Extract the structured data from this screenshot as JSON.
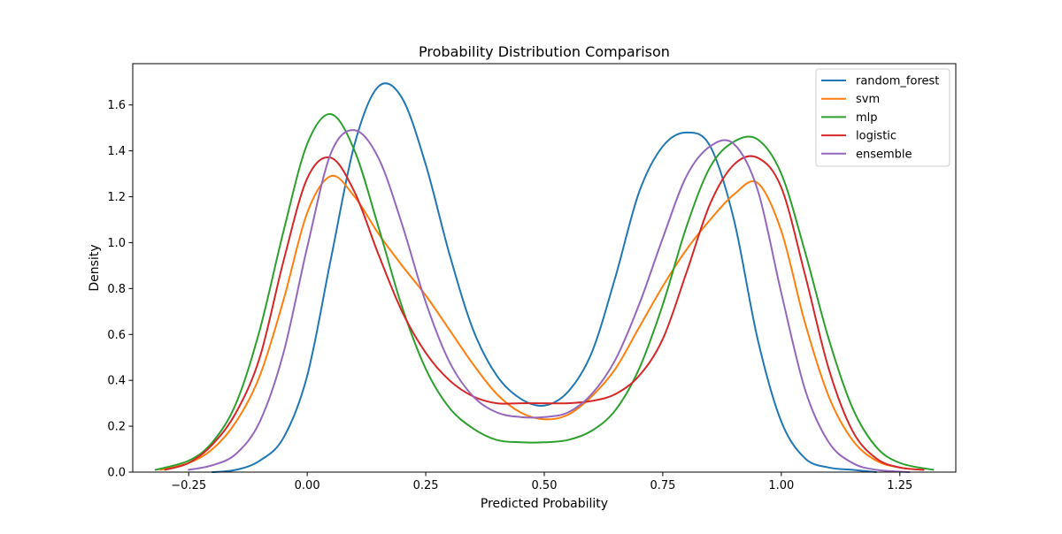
{
  "chart_data": {
    "type": "line",
    "title": "Probability Distribution Comparison",
    "xlabel": "Predicted Probability",
    "ylabel": "Density",
    "xlim": [
      -0.368,
      1.368
    ],
    "ylim": [
      0,
      1.78
    ],
    "xticks": [
      -0.25,
      0.0,
      0.25,
      0.5,
      0.75,
      1.0,
      1.25
    ],
    "xtick_labels": [
      "−0.25",
      "0.00",
      "0.25",
      "0.50",
      "0.75",
      "1.00",
      "1.25"
    ],
    "yticks": [
      0.0,
      0.2,
      0.4,
      0.6,
      0.8,
      1.0,
      1.2,
      1.4,
      1.6
    ],
    "ytick_labels": [
      "0.0",
      "0.2",
      "0.4",
      "0.6",
      "0.8",
      "1.0",
      "1.2",
      "1.4",
      "1.6"
    ],
    "grid": false,
    "legend_position": "top-right",
    "series": [
      {
        "name": "random_forest",
        "color": "#1f77b4",
        "x": [
          -0.2,
          -0.15,
          -0.1,
          -0.05,
          0.0,
          0.05,
          0.1,
          0.15,
          0.2,
          0.25,
          0.3,
          0.35,
          0.4,
          0.45,
          0.5,
          0.55,
          0.6,
          0.65,
          0.7,
          0.75,
          0.8,
          0.85,
          0.9,
          0.95,
          1.0,
          1.05,
          1.1,
          1.15,
          1.2
        ],
        "y": [
          0.0,
          0.01,
          0.05,
          0.15,
          0.42,
          0.93,
          1.43,
          1.68,
          1.63,
          1.34,
          0.95,
          0.62,
          0.42,
          0.32,
          0.29,
          0.35,
          0.52,
          0.85,
          1.22,
          1.42,
          1.48,
          1.42,
          1.1,
          0.58,
          0.22,
          0.06,
          0.02,
          0.01,
          0.0
        ]
      },
      {
        "name": "svm",
        "color": "#ff7f0e",
        "x": [
          -0.31,
          -0.25,
          -0.2,
          -0.15,
          -0.1,
          -0.05,
          0.0,
          0.05,
          0.1,
          0.15,
          0.2,
          0.25,
          0.3,
          0.35,
          0.4,
          0.45,
          0.5,
          0.55,
          0.6,
          0.65,
          0.7,
          0.75,
          0.8,
          0.85,
          0.9,
          0.95,
          1.0,
          1.05,
          1.1,
          1.15,
          1.2,
          1.25,
          1.3
        ],
        "y": [
          0.01,
          0.04,
          0.1,
          0.22,
          0.42,
          0.75,
          1.13,
          1.29,
          1.2,
          1.04,
          0.9,
          0.77,
          0.62,
          0.47,
          0.34,
          0.26,
          0.23,
          0.25,
          0.33,
          0.45,
          0.63,
          0.81,
          0.97,
          1.1,
          1.21,
          1.26,
          1.05,
          0.65,
          0.33,
          0.14,
          0.05,
          0.02,
          0.01
        ]
      },
      {
        "name": "mlp",
        "color": "#2ca02c",
        "x": [
          -0.32,
          -0.25,
          -0.2,
          -0.15,
          -0.1,
          -0.05,
          0.0,
          0.05,
          0.1,
          0.15,
          0.2,
          0.25,
          0.3,
          0.35,
          0.4,
          0.45,
          0.5,
          0.55,
          0.6,
          0.65,
          0.7,
          0.75,
          0.8,
          0.85,
          0.9,
          0.95,
          1.0,
          1.05,
          1.1,
          1.15,
          1.2,
          1.25,
          1.32
        ],
        "y": [
          0.01,
          0.05,
          0.13,
          0.3,
          0.62,
          1.05,
          1.43,
          1.56,
          1.4,
          1.07,
          0.72,
          0.45,
          0.28,
          0.19,
          0.14,
          0.13,
          0.13,
          0.14,
          0.18,
          0.27,
          0.45,
          0.73,
          1.07,
          1.33,
          1.44,
          1.45,
          1.3,
          0.96,
          0.58,
          0.28,
          0.11,
          0.04,
          0.01
        ]
      },
      {
        "name": "logistic",
        "color": "#d62728",
        "x": [
          -0.3,
          -0.25,
          -0.2,
          -0.15,
          -0.1,
          -0.05,
          0.0,
          0.05,
          0.1,
          0.15,
          0.2,
          0.25,
          0.3,
          0.35,
          0.4,
          0.45,
          0.5,
          0.55,
          0.6,
          0.65,
          0.7,
          0.75,
          0.8,
          0.85,
          0.9,
          0.95,
          1.0,
          1.05,
          1.1,
          1.15,
          1.2,
          1.25,
          1.3
        ],
        "y": [
          0.01,
          0.04,
          0.12,
          0.26,
          0.5,
          0.92,
          1.28,
          1.37,
          1.22,
          0.95,
          0.7,
          0.52,
          0.4,
          0.33,
          0.3,
          0.3,
          0.3,
          0.3,
          0.31,
          0.34,
          0.42,
          0.58,
          0.87,
          1.17,
          1.34,
          1.37,
          1.24,
          0.86,
          0.45,
          0.18,
          0.06,
          0.02,
          0.01
        ]
      },
      {
        "name": "ensemble",
        "color": "#9467bd",
        "x": [
          -0.25,
          -0.2,
          -0.15,
          -0.1,
          -0.05,
          0.0,
          0.05,
          0.1,
          0.15,
          0.2,
          0.25,
          0.3,
          0.35,
          0.4,
          0.45,
          0.5,
          0.55,
          0.6,
          0.65,
          0.7,
          0.75,
          0.8,
          0.85,
          0.9,
          0.95,
          1.0,
          1.05,
          1.1,
          1.15,
          1.2,
          1.27
        ],
        "y": [
          0.01,
          0.03,
          0.08,
          0.22,
          0.52,
          0.98,
          1.39,
          1.49,
          1.37,
          1.08,
          0.74,
          0.48,
          0.33,
          0.26,
          0.24,
          0.24,
          0.26,
          0.34,
          0.49,
          0.73,
          1.02,
          1.29,
          1.42,
          1.43,
          1.23,
          0.78,
          0.36,
          0.13,
          0.04,
          0.01,
          0.0
        ]
      }
    ]
  }
}
